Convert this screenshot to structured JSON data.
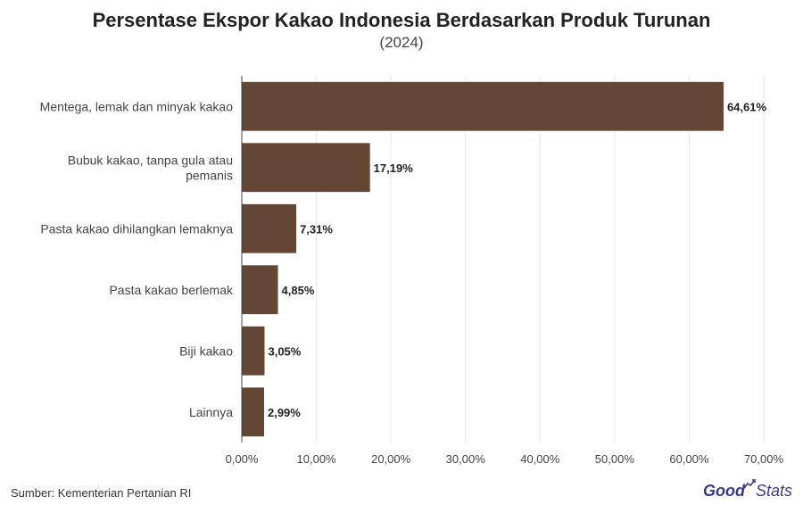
{
  "title": "Persentase Ekspor Kakao Indonesia Berdasarkan Produk Turunan",
  "subtitle": "(2024)",
  "source": "Sumber: Kementerian Pertanian RI",
  "logo": {
    "part1": "Good",
    "part2": "Stats",
    "icon": "growth-arrow-icon"
  },
  "colors": {
    "bar": "#634634",
    "grid": "#e6e6e6",
    "axis": "#444444"
  },
  "chart_data": {
    "type": "bar",
    "orientation": "horizontal",
    "categories": [
      [
        "Mentega, lemak dan minyak kakao"
      ],
      [
        "Bubuk kakao, tanpa gula atau",
        "pemanis"
      ],
      [
        "Pasta kakao dihilangkan lemaknya"
      ],
      [
        "Pasta kakao berlemak"
      ],
      [
        "Biji kakao"
      ],
      [
        "Lainnya"
      ]
    ],
    "values": [
      64.61,
      17.19,
      7.31,
      4.85,
      3.05,
      2.99
    ],
    "value_labels": [
      "64,61%",
      "17,19%",
      "7,31%",
      "4,85%",
      "3,05%",
      "2,99%"
    ],
    "xlim": [
      0,
      70
    ],
    "xticks": [
      0,
      10,
      20,
      30,
      40,
      50,
      60,
      70
    ],
    "xtick_labels": [
      "0,00%",
      "10,00%",
      "20,00%",
      "30,00%",
      "40,00%",
      "50,00%",
      "60,00%",
      "70,00%"
    ],
    "grid": true,
    "legend": "none"
  }
}
